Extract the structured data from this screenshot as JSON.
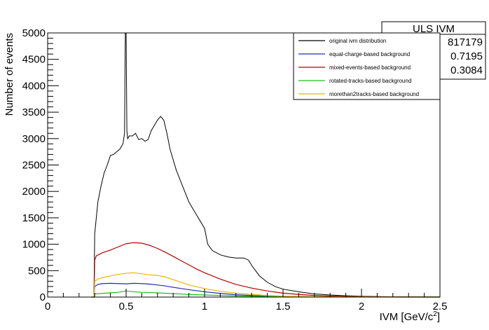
{
  "chart_data": {
    "type": "line",
    "xlabel": "IVM [GeV/c²]",
    "ylabel": "Number of events",
    "xlim": [
      0,
      2.5
    ],
    "ylim": [
      0,
      5000
    ],
    "x_ticks": [
      0,
      0.5,
      1,
      1.5,
      2,
      2.5
    ],
    "x_tick_labels": [
      "0",
      "0.5",
      "1",
      "1.5",
      "2",
      "2.5"
    ],
    "y_ticks": [
      0,
      500,
      1000,
      1500,
      2000,
      2500,
      3000,
      3500,
      4000,
      4500,
      5000
    ],
    "y_tick_labels": [
      "0",
      "500",
      "1000",
      "1500",
      "2000",
      "2500",
      "3000",
      "3500",
      "4000",
      "4500",
      "5000"
    ],
    "grid": false,
    "legend_position": "top-right",
    "stats_box": {
      "title": "ULS IVM",
      "values": [
        "817179",
        "0.7195",
        "0.3084"
      ]
    },
    "series": [
      {
        "name": "original ivm distribution",
        "color": "#000000",
        "x": [
          0.28,
          0.295,
          0.3,
          0.31,
          0.32,
          0.34,
          0.36,
          0.38,
          0.4,
          0.42,
          0.44,
          0.46,
          0.48,
          0.49,
          0.495,
          0.5,
          0.505,
          0.51,
          0.52,
          0.54,
          0.56,
          0.58,
          0.6,
          0.62,
          0.64,
          0.66,
          0.68,
          0.7,
          0.72,
          0.74,
          0.76,
          0.78,
          0.8,
          0.82,
          0.84,
          0.86,
          0.88,
          0.9,
          0.92,
          0.94,
          0.96,
          0.98,
          1.0,
          1.02,
          1.05,
          1.1,
          1.15,
          1.2,
          1.25,
          1.28,
          1.3,
          1.35,
          1.4,
          1.45,
          1.5,
          1.6,
          1.7,
          1.8,
          1.9,
          2.0,
          2.1,
          2.2,
          2.3,
          2.4,
          2.5
        ],
        "values": [
          0,
          0,
          1200,
          1500,
          1800,
          2100,
          2350,
          2500,
          2680,
          2700,
          2750,
          2800,
          2900,
          3100,
          5000,
          5000,
          3150,
          3000,
          3050,
          3050,
          3100,
          2980,
          3000,
          2950,
          2980,
          3150,
          3250,
          3350,
          3420,
          3350,
          3100,
          2800,
          2600,
          2400,
          2250,
          2100,
          1950,
          1800,
          1700,
          1600,
          1500,
          1400,
          1300,
          1000,
          880,
          800,
          760,
          740,
          740,
          700,
          600,
          400,
          280,
          200,
          150,
          100,
          60,
          40,
          25,
          15,
          10,
          7,
          5,
          3,
          2
        ]
      },
      {
        "name": "equal-charge-based background",
        "color": "#1f2fb5",
        "x": [
          0.28,
          0.295,
          0.3,
          0.32,
          0.35,
          0.4,
          0.45,
          0.5,
          0.55,
          0.6,
          0.65,
          0.7,
          0.75,
          0.8,
          0.9,
          1.0,
          1.1,
          1.2,
          1.3,
          1.4,
          1.5,
          1.6,
          1.8,
          2.0,
          2.2,
          2.5
        ],
        "values": [
          0,
          0,
          200,
          240,
          255,
          260,
          255,
          250,
          260,
          255,
          245,
          230,
          210,
          185,
          140,
          100,
          70,
          45,
          30,
          20,
          12,
          8,
          4,
          2,
          1,
          0
        ]
      },
      {
        "name": "mixed-events-based background",
        "color": "#b40000",
        "x": [
          0.28,
          0.295,
          0.3,
          0.31,
          0.33,
          0.35,
          0.4,
          0.45,
          0.5,
          0.55,
          0.6,
          0.65,
          0.7,
          0.75,
          0.8,
          0.85,
          0.9,
          0.95,
          1.0,
          1.1,
          1.2,
          1.3,
          1.4,
          1.5,
          1.6,
          1.7,
          1.8,
          1.9,
          2.0,
          2.2,
          2.5
        ],
        "values": [
          0,
          0,
          700,
          780,
          810,
          840,
          890,
          950,
          1010,
          1030,
          1020,
          980,
          920,
          850,
          770,
          690,
          610,
          530,
          460,
          340,
          240,
          170,
          115,
          75,
          50,
          32,
          20,
          13,
          8,
          4,
          1
        ]
      },
      {
        "name": "rotated-tracks-based background",
        "color": "#19c019",
        "x": [
          0.28,
          0.295,
          0.3,
          0.35,
          0.4,
          0.45,
          0.5,
          0.55,
          0.6,
          0.7,
          0.8,
          0.9,
          1.0,
          1.1,
          1.2,
          1.3,
          1.5,
          1.8,
          2.1,
          2.5
        ],
        "values": [
          0,
          0,
          60,
          70,
          80,
          90,
          115,
          100,
          90,
          80,
          65,
          50,
          40,
          30,
          22,
          15,
          7,
          3,
          1,
          0
        ]
      },
      {
        "name": "morethan2tracks-based background",
        "color": "#e8b800",
        "x": [
          0.28,
          0.295,
          0.3,
          0.32,
          0.35,
          0.4,
          0.45,
          0.5,
          0.55,
          0.6,
          0.65,
          0.7,
          0.75,
          0.8,
          0.85,
          0.9,
          1.0,
          1.1,
          1.2,
          1.3,
          1.4,
          1.5,
          1.6,
          1.8,
          2.0,
          2.5
        ],
        "values": [
          0,
          0,
          300,
          340,
          370,
          400,
          430,
          450,
          460,
          440,
          420,
          410,
          380,
          330,
          280,
          230,
          160,
          110,
          75,
          50,
          30,
          18,
          10,
          4,
          2,
          0
        ]
      }
    ]
  }
}
